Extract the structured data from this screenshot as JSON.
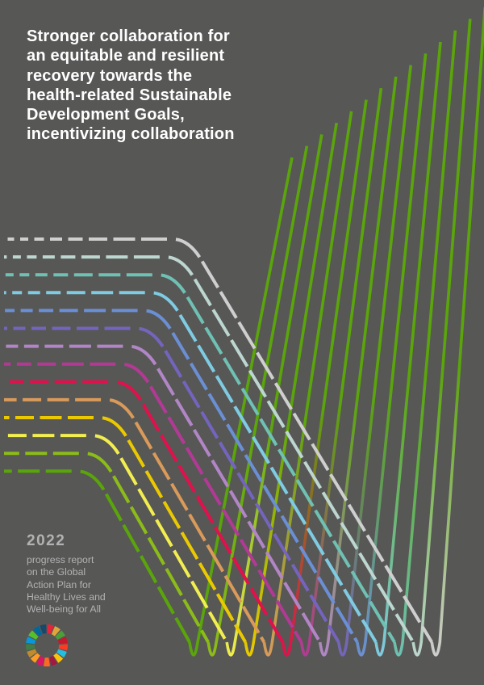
{
  "cover": {
    "title_lines": [
      "Stronger collaboration for",
      "an equitable and resilient",
      "recovery towards the",
      "health-related Sustainable",
      "Development Goals,",
      "incentivizing collaboration"
    ],
    "year": "2022",
    "subtitle_lines": [
      "progress report",
      "on the Global",
      "Action Plan for",
      "Healthy Lives and",
      "Well-being for All"
    ]
  },
  "colors": {
    "background": "#575756",
    "title": "#ffffff",
    "subtitle": "#b2b2b2",
    "up_line_green": "#5aa50a",
    "lines": [
      "#cfcfcf",
      "#bdd6d0",
      "#6fc1b3",
      "#7fcbe2",
      "#6b8fd4",
      "#7464bd",
      "#b286c6",
      "#b23a95",
      "#e2104c",
      "#d99a5a",
      "#ebc900",
      "#f2ee50",
      "#8cbc18",
      "#5aa50a"
    ]
  },
  "sdg_wheel_colors": [
    "#e5243b",
    "#dda63a",
    "#4c9f38",
    "#c5192d",
    "#ff3a21",
    "#26bde2",
    "#fcc30b",
    "#a21942",
    "#fd6925",
    "#dd1367",
    "#fd9d24",
    "#bf8b2e",
    "#3f7e44",
    "#0a97d9",
    "#56c02b",
    "#00689d",
    "#19486a"
  ],
  "icons": {
    "logo": "sdg-wheel-icon"
  }
}
